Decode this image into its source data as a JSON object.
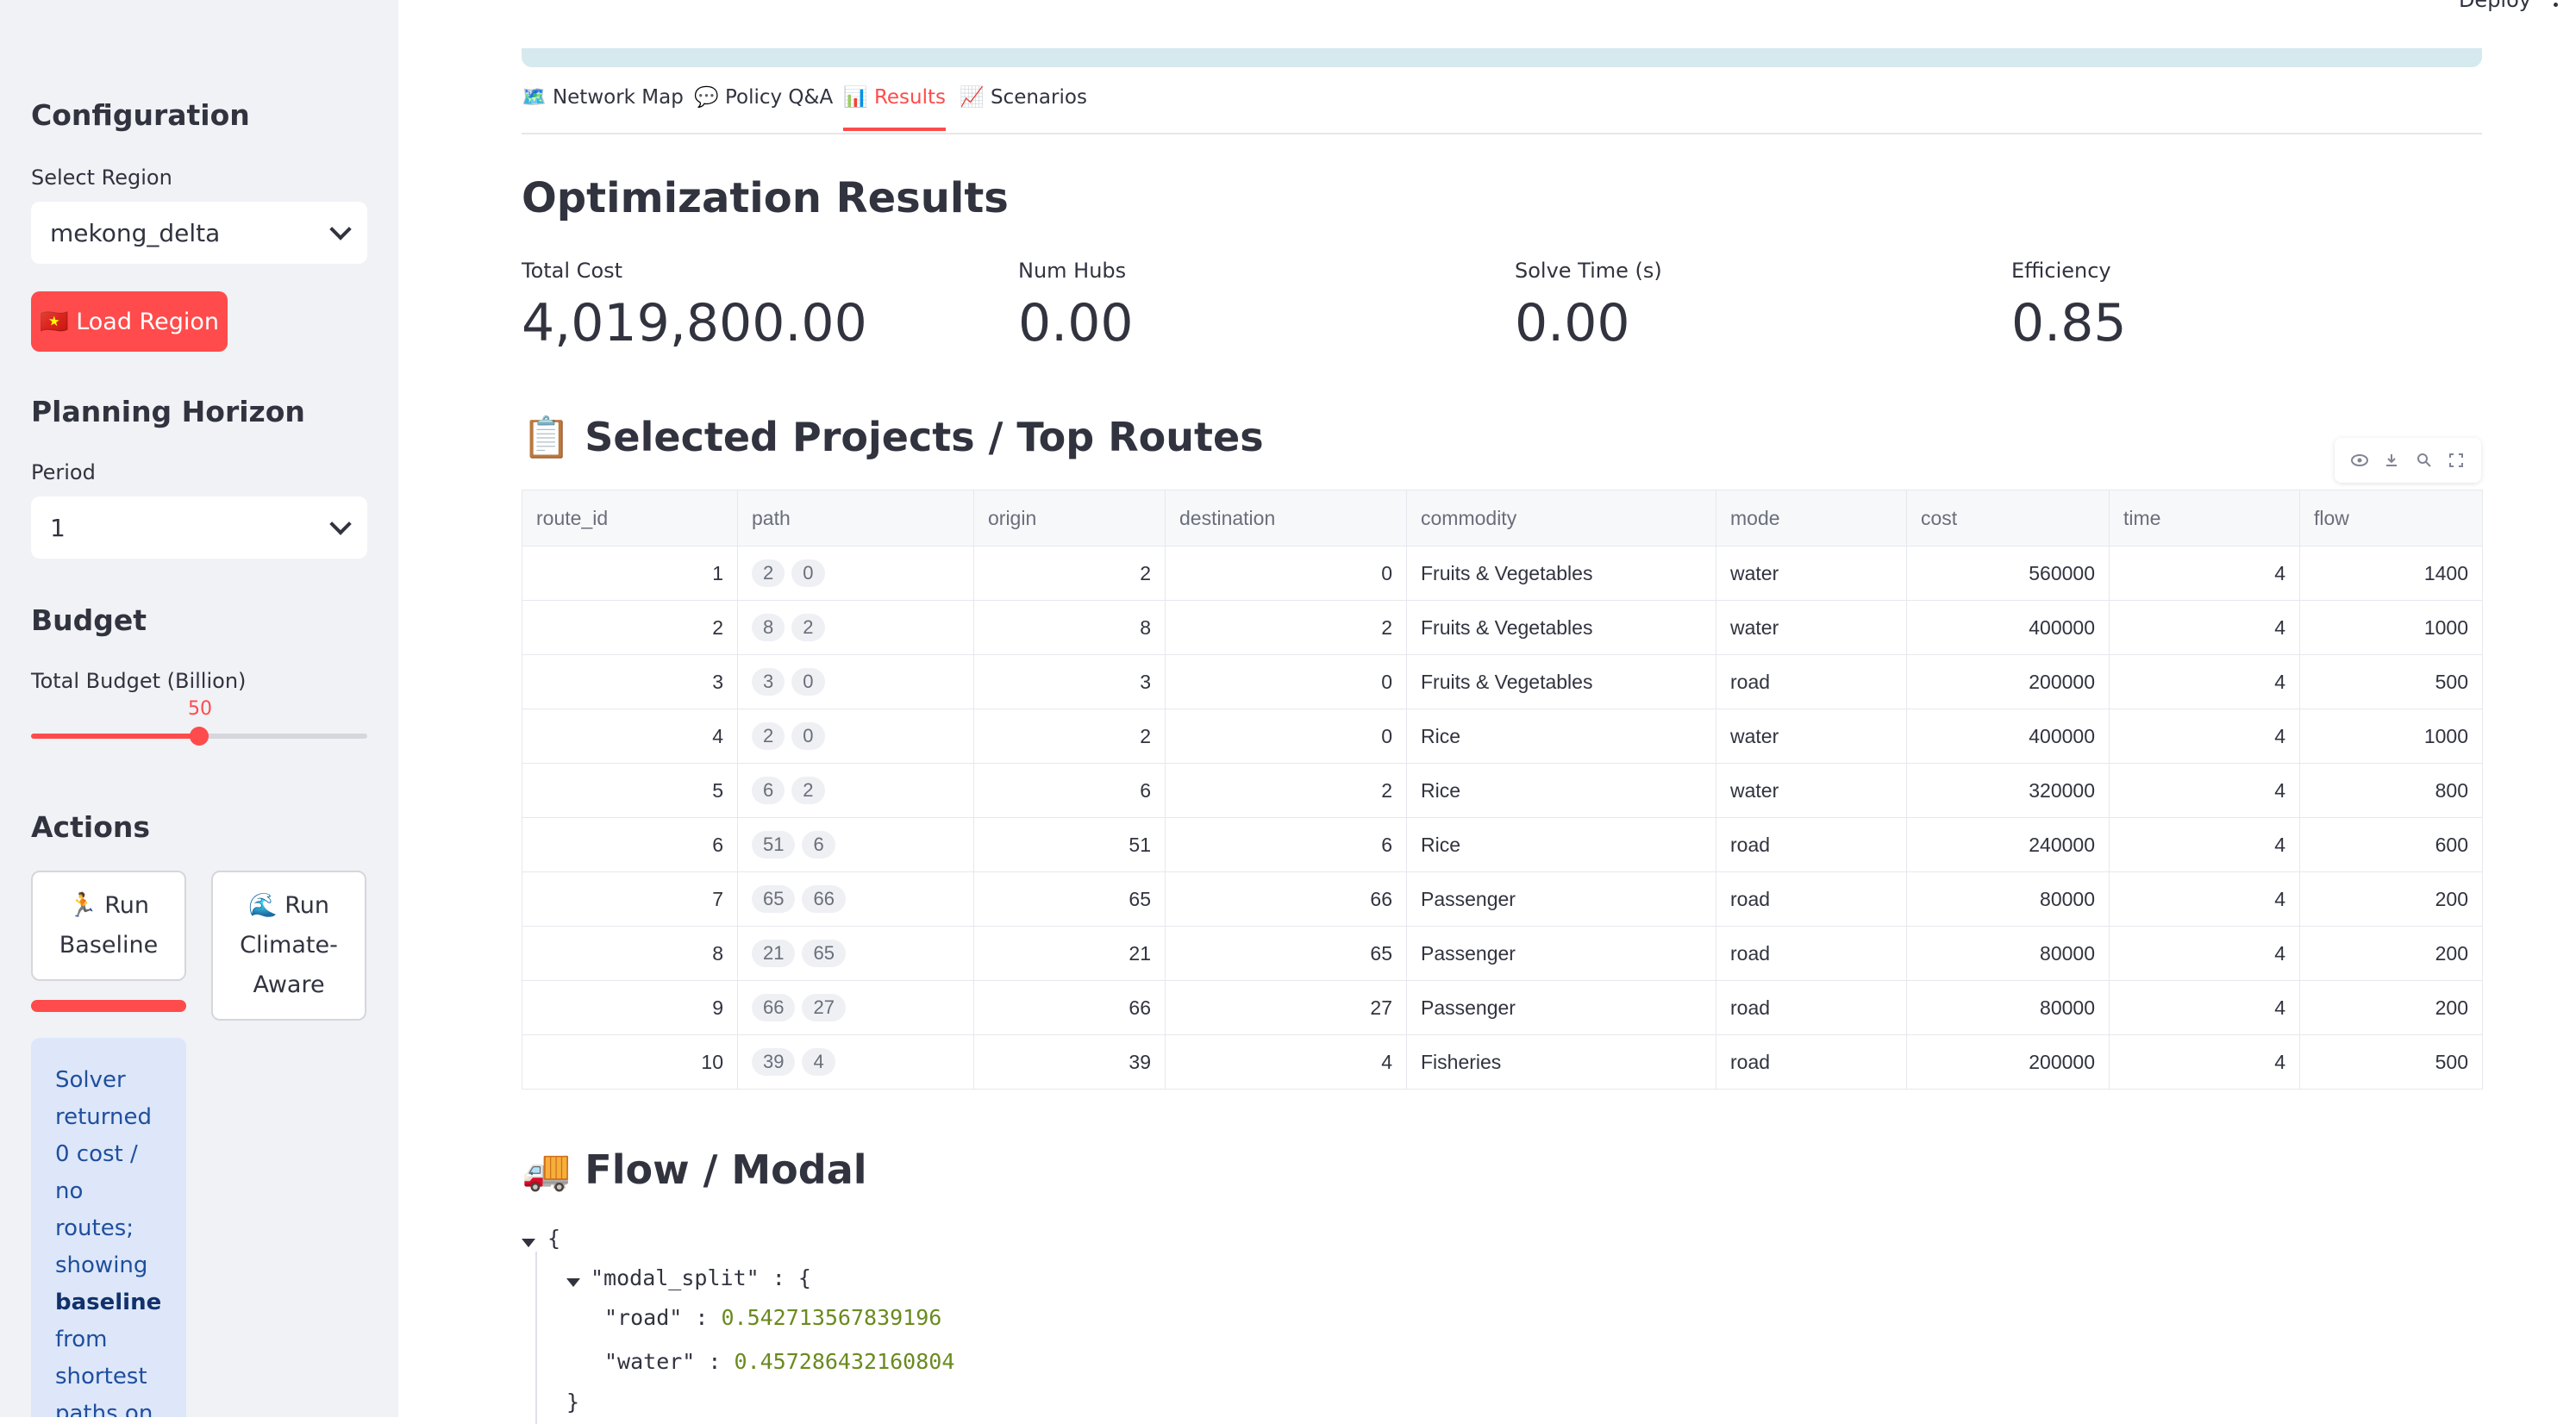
{
  "sidebar": {
    "configuration_title": "Configuration",
    "region_label": "Select Region",
    "region_value": "mekong_delta",
    "load_button": "🇻🇳 Load Region",
    "planning_title": "Planning Horizon",
    "period_label": "Period",
    "period_value": "1",
    "budget_title": "Budget",
    "budget_label": "Total Budget (Billion)",
    "budget_value": "50",
    "budget_fraction": 0.5,
    "actions_title": "Actions",
    "run_baseline": "🏃 Run Baseline",
    "run_climate": "🌊 Run Climate-Aware",
    "info_pre": "Solver returned 0 cost / no routes; showing",
    "info_bold": "baseline",
    "info_post": "from shortest paths on the"
  },
  "header": {
    "deploy": "Deploy"
  },
  "tabs": [
    {
      "icon": "🗺️",
      "label": "Network Map"
    },
    {
      "icon": "💬",
      "label": "Policy Q&A"
    },
    {
      "icon": "📊",
      "label": "Results"
    },
    {
      "icon": "📈",
      "label": "Scenarios"
    }
  ],
  "main": {
    "title": "Optimization Results",
    "metrics": [
      {
        "label": "Total Cost",
        "value": "4,019,800.00"
      },
      {
        "label": "Num Hubs",
        "value": "0.00"
      },
      {
        "label": "Solve Time (s)",
        "value": "0.00"
      },
      {
        "label": "Efficiency",
        "value": "0.85"
      }
    ],
    "projects_title": "📋 Selected Projects / Top Routes",
    "flow_title": "🚚 Flow / Modal"
  },
  "table": {
    "columns": [
      "route_id",
      "path",
      "origin",
      "destination",
      "commodity",
      "mode",
      "cost",
      "time",
      "flow"
    ],
    "rows": [
      {
        "route_id": "1",
        "path": [
          "2",
          "0"
        ],
        "origin": "2",
        "destination": "0",
        "commodity": "Fruits & Vegetables",
        "mode": "water",
        "cost": "560000",
        "time": "4",
        "flow": "1400"
      },
      {
        "route_id": "2",
        "path": [
          "8",
          "2"
        ],
        "origin": "8",
        "destination": "2",
        "commodity": "Fruits & Vegetables",
        "mode": "water",
        "cost": "400000",
        "time": "4",
        "flow": "1000"
      },
      {
        "route_id": "3",
        "path": [
          "3",
          "0"
        ],
        "origin": "3",
        "destination": "0",
        "commodity": "Fruits & Vegetables",
        "mode": "road",
        "cost": "200000",
        "time": "4",
        "flow": "500"
      },
      {
        "route_id": "4",
        "path": [
          "2",
          "0"
        ],
        "origin": "2",
        "destination": "0",
        "commodity": "Rice",
        "mode": "water",
        "cost": "400000",
        "time": "4",
        "flow": "1000"
      },
      {
        "route_id": "5",
        "path": [
          "6",
          "2"
        ],
        "origin": "6",
        "destination": "2",
        "commodity": "Rice",
        "mode": "water",
        "cost": "320000",
        "time": "4",
        "flow": "800"
      },
      {
        "route_id": "6",
        "path": [
          "51",
          "6"
        ],
        "origin": "51",
        "destination": "6",
        "commodity": "Rice",
        "mode": "road",
        "cost": "240000",
        "time": "4",
        "flow": "600"
      },
      {
        "route_id": "7",
        "path": [
          "65",
          "66"
        ],
        "origin": "65",
        "destination": "66",
        "commodity": "Passenger",
        "mode": "road",
        "cost": "80000",
        "time": "4",
        "flow": "200"
      },
      {
        "route_id": "8",
        "path": [
          "21",
          "65"
        ],
        "origin": "21",
        "destination": "65",
        "commodity": "Passenger",
        "mode": "road",
        "cost": "80000",
        "time": "4",
        "flow": "200"
      },
      {
        "route_id": "9",
        "path": [
          "66",
          "27"
        ],
        "origin": "66",
        "destination": "27",
        "commodity": "Passenger",
        "mode": "road",
        "cost": "80000",
        "time": "4",
        "flow": "200"
      },
      {
        "route_id": "10",
        "path": [
          "39",
          "4"
        ],
        "origin": "39",
        "destination": "4",
        "commodity": "Fisheries",
        "mode": "road",
        "cost": "200000",
        "time": "4",
        "flow": "500"
      }
    ]
  },
  "json_view": {
    "open_brace": "{",
    "modal_key": "\"modal_split\"",
    "road_key": "\"road\"",
    "road_value": "0.542713567839196",
    "water_key": "\"water\"",
    "water_value": "0.457286432160804",
    "close_brace": "}"
  },
  "colors": {
    "accent": "#ff4b4b",
    "sidebar_bg": "#f0f2f6",
    "info_bg": "#dde7f9"
  }
}
